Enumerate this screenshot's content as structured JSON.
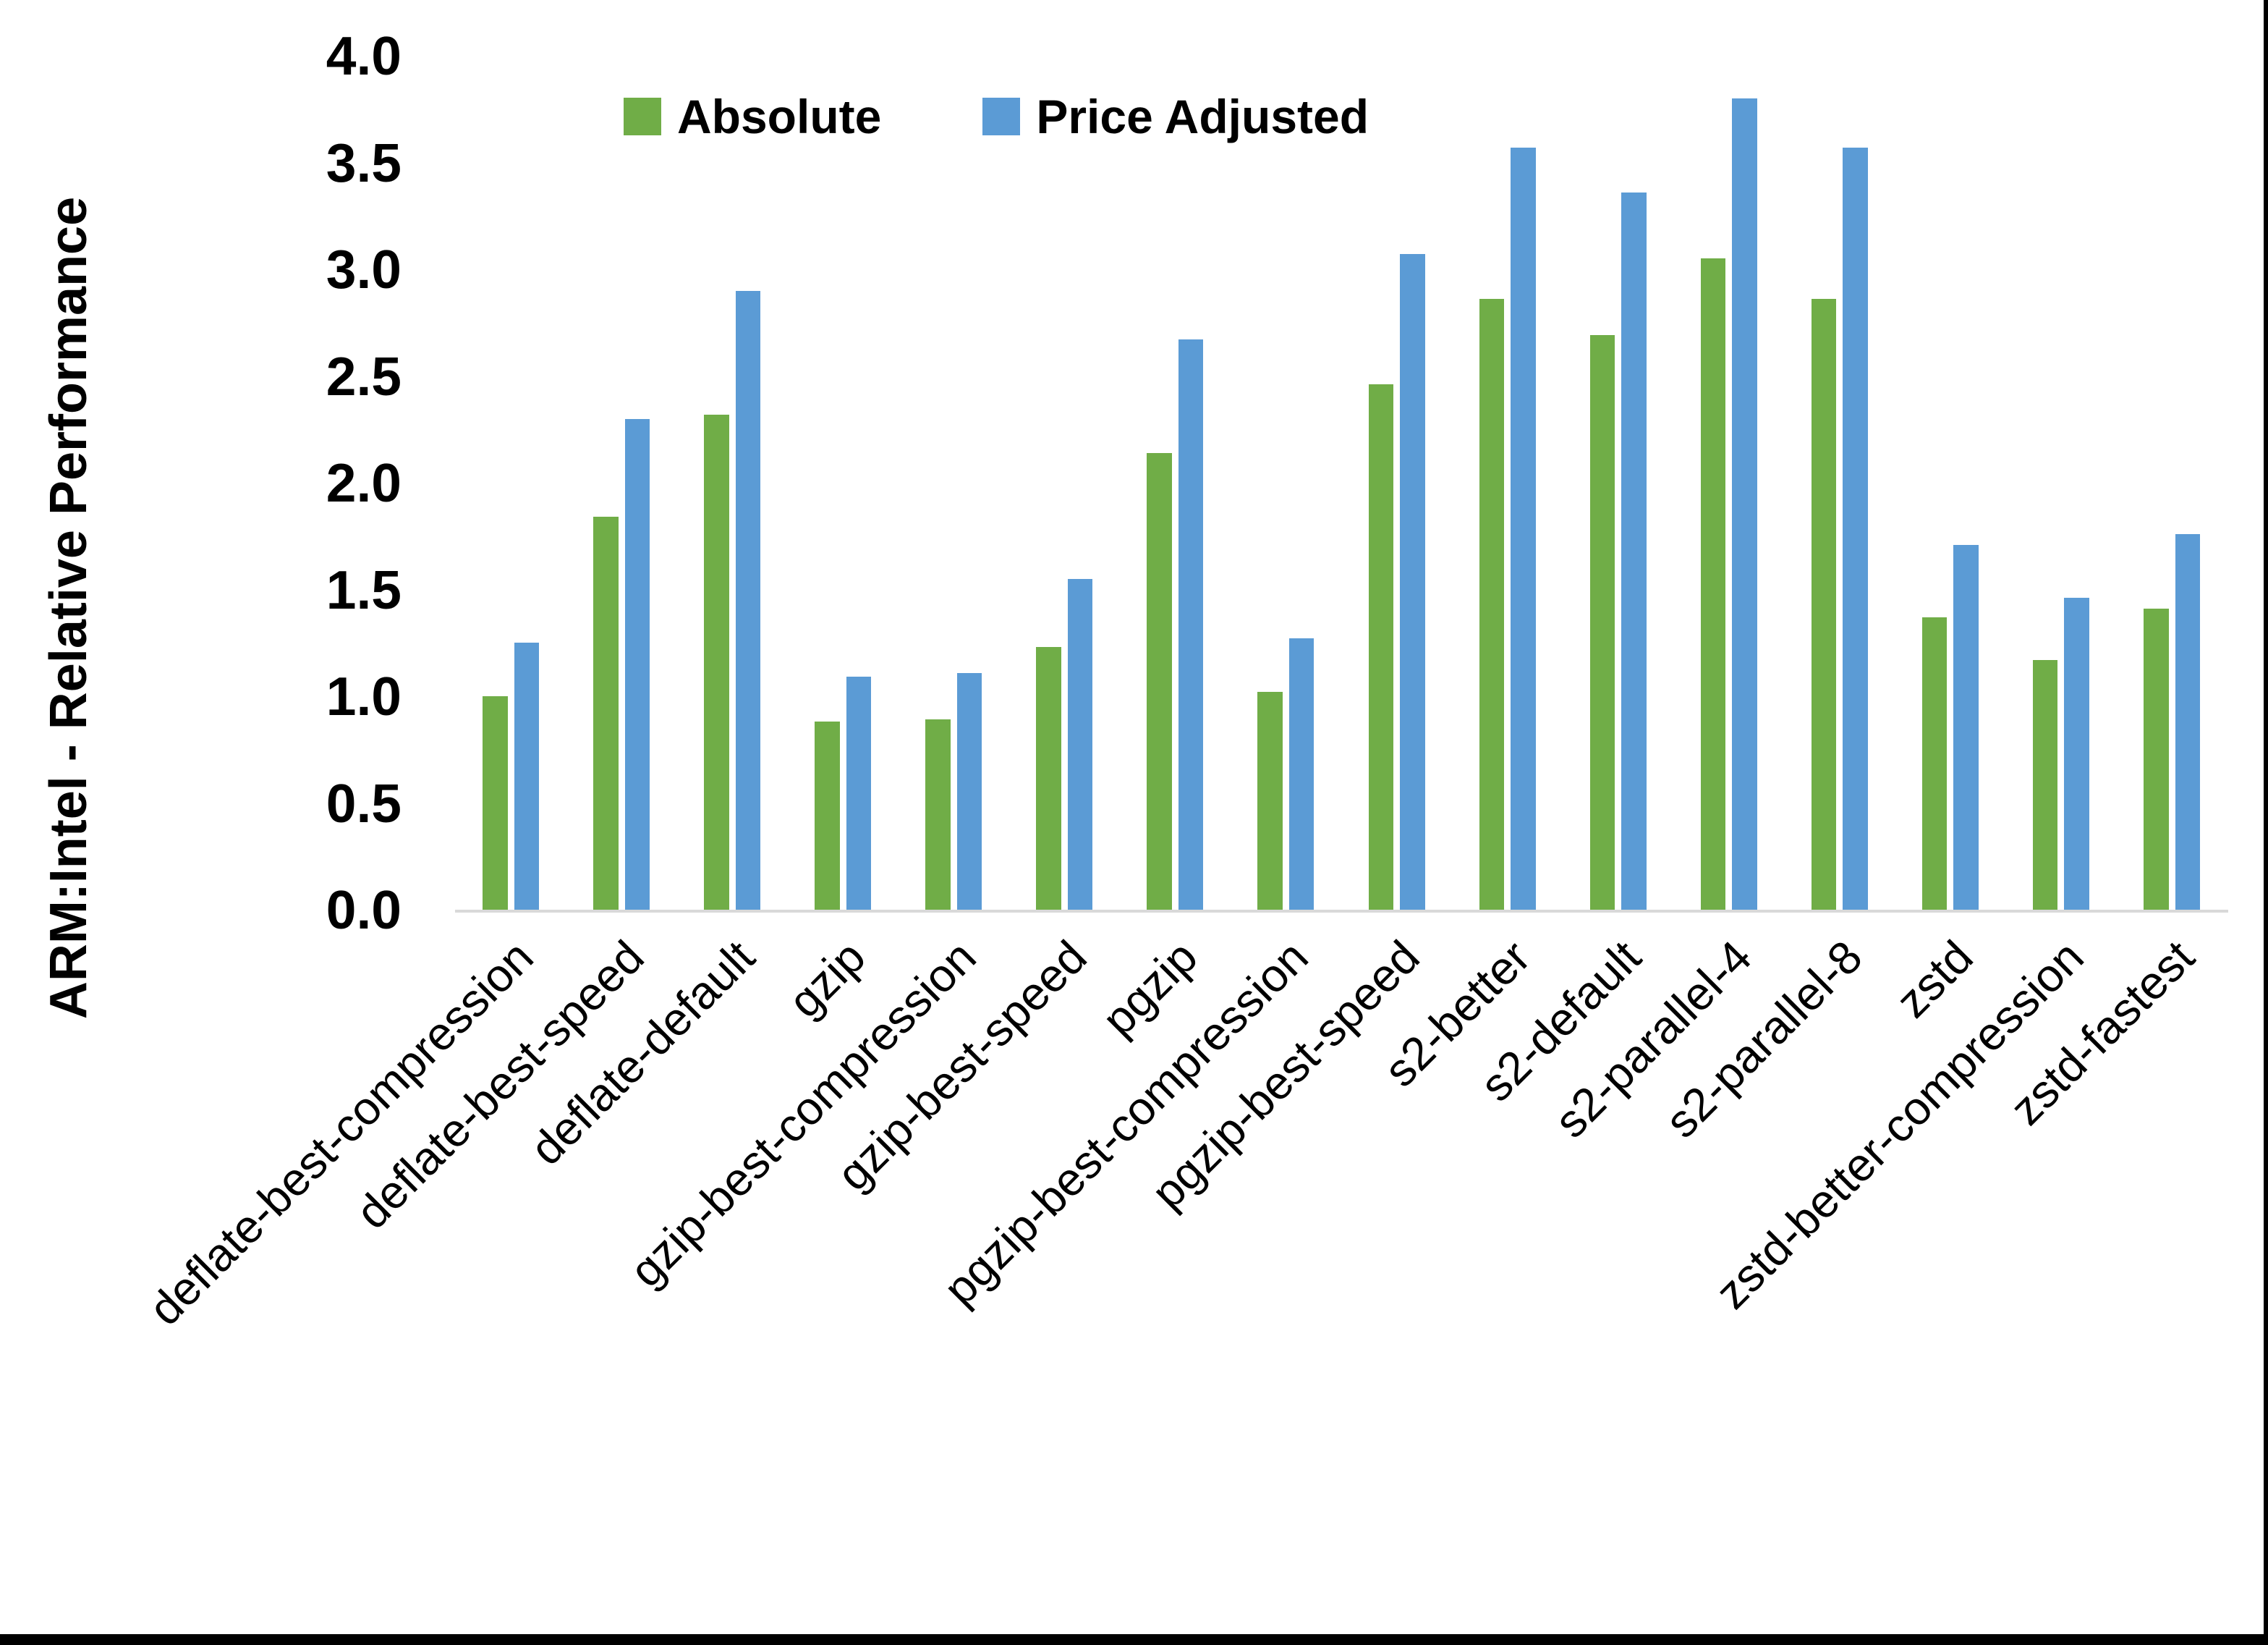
{
  "chart_data": {
    "type": "bar",
    "title": "",
    "ylabel": "ARM:Intel - Relative Performance",
    "xlabel": "",
    "categories": [
      "deflate-best-compression",
      "deflate-best-speed",
      "deflate-default",
      "gzip",
      "gzip-best-compression",
      "gzip-best-speed",
      "pgzip",
      "pgzip-best-compression",
      "pgzip-best-speed",
      "s2-better",
      "s2-default",
      "s2-parallel-4",
      "s2-parallel-8",
      "zstd",
      "zstd-better-compression",
      "zstd-fastest"
    ],
    "series": [
      {
        "name": "Absolute",
        "color": "#70AD47",
        "values": [
          1.0,
          1.84,
          2.32,
          0.88,
          0.89,
          1.23,
          2.14,
          1.02,
          2.46,
          2.86,
          2.69,
          3.05,
          2.86,
          1.37,
          1.17,
          1.41
        ]
      },
      {
        "name": "Price Adjusted",
        "color": "#5B9BD5",
        "values": [
          1.25,
          2.3,
          2.9,
          1.09,
          1.11,
          1.55,
          2.67,
          1.27,
          3.07,
          3.57,
          3.36,
          3.8,
          3.57,
          1.71,
          1.46,
          1.76
        ]
      }
    ],
    "y_ticks": [
      4.0,
      3.5,
      3.0,
      2.5,
      2.0,
      1.5,
      1.0,
      0.5,
      0.0
    ],
    "ylim": [
      0,
      4
    ],
    "grid": false,
    "legend_position": "top-center",
    "axis_line_color": "#D9D9D9",
    "text_color": "#000000",
    "frame_border_color": "#000000"
  }
}
